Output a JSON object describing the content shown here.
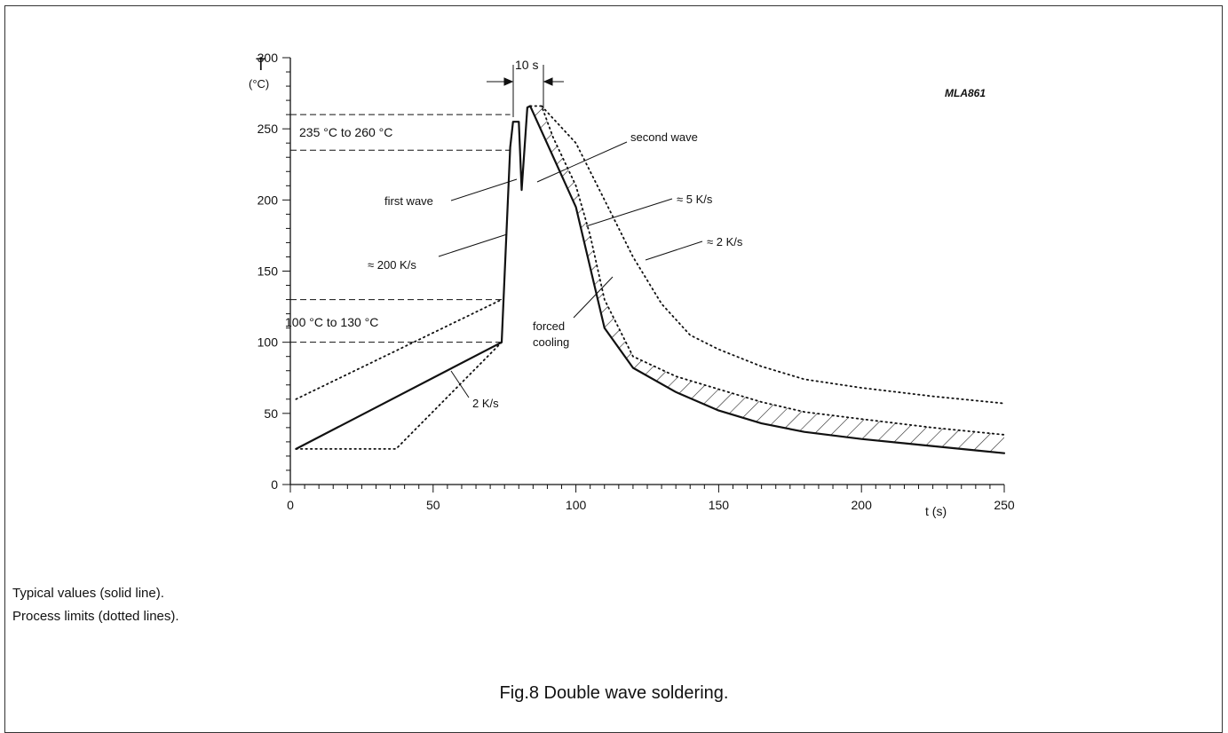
{
  "chart_data": {
    "type": "line",
    "title": "",
    "id_label": "MLA861",
    "xlabel": "t (s)",
    "ylabel": "T",
    "ylabel_unit": "(°C)",
    "xlim": [
      0,
      250
    ],
    "ylim": [
      0,
      300
    ],
    "x_ticks": [
      0,
      50,
      100,
      150,
      200,
      250
    ],
    "y_ticks": [
      0,
      50,
      100,
      150,
      200,
      250,
      300
    ],
    "grid": false,
    "series": [
      {
        "style": "solid",
        "points": [
          [
            2,
            25
          ],
          [
            74,
            100
          ],
          [
            77,
            237
          ],
          [
            78,
            255
          ],
          [
            80,
            255
          ],
          [
            81,
            207
          ],
          [
            83,
            265
          ],
          [
            84,
            266
          ],
          [
            100,
            195
          ],
          [
            110,
            110
          ],
          [
            120,
            82
          ],
          [
            135,
            65
          ],
          [
            150,
            52
          ],
          [
            165,
            43
          ],
          [
            180,
            37
          ],
          [
            200,
            32
          ],
          [
            220,
            28
          ],
          [
            240,
            24
          ],
          [
            250,
            22
          ]
        ]
      },
      {
        "style": "dotted",
        "points": [
          [
            2,
            25
          ],
          [
            37,
            25
          ],
          [
            74,
            100
          ]
        ]
      },
      {
        "style": "dotted",
        "points": [
          [
            2,
            60
          ],
          [
            74,
            130
          ]
        ]
      },
      {
        "style": "dotted",
        "points": [
          [
            88,
            266
          ],
          [
            100,
            240
          ],
          [
            110,
            200
          ],
          [
            120,
            160
          ],
          [
            130,
            127
          ],
          [
            140,
            105
          ],
          [
            150,
            95
          ],
          [
            165,
            83
          ],
          [
            180,
            74
          ],
          [
            200,
            68
          ],
          [
            225,
            62
          ],
          [
            250,
            57
          ]
        ]
      },
      {
        "style": "dotted",
        "points": [
          [
            84,
            266
          ],
          [
            88,
            266
          ],
          [
            92,
            244
          ],
          [
            100,
            210
          ],
          [
            105,
            175
          ],
          [
            110,
            130
          ],
          [
            120,
            90
          ],
          [
            135,
            76
          ],
          [
            150,
            67
          ],
          [
            165,
            58
          ],
          [
            180,
            51
          ],
          [
            200,
            46
          ],
          [
            225,
            40
          ],
          [
            250,
            35
          ]
        ]
      }
    ],
    "reference_lines": [
      {
        "y": 260,
        "x_end": 77
      },
      {
        "y": 235,
        "x_end": 77
      },
      {
        "y": 130,
        "x_end": 74
      },
      {
        "y": 100,
        "x_end": 74
      }
    ],
    "annotations": {
      "ten_s": "10 s",
      "range_high": "235 °C  to  260 °C",
      "range_low": "100 °C  to  130 °C",
      "second_wave": "second wave",
      "first_wave": "first wave",
      "rate_5": "≈ 5 K/s",
      "rate_2_high": "≈ 2 K/s",
      "rate_200": "≈ 200 K/s",
      "forced_1": "forced",
      "forced_2": "cooling",
      "rate_2_low": "2 K/s"
    }
  },
  "notes": {
    "line1": "Typical values (solid line).",
    "line2": "Process limits (dotted lines)."
  },
  "caption": "Fig.8  Double wave soldering."
}
